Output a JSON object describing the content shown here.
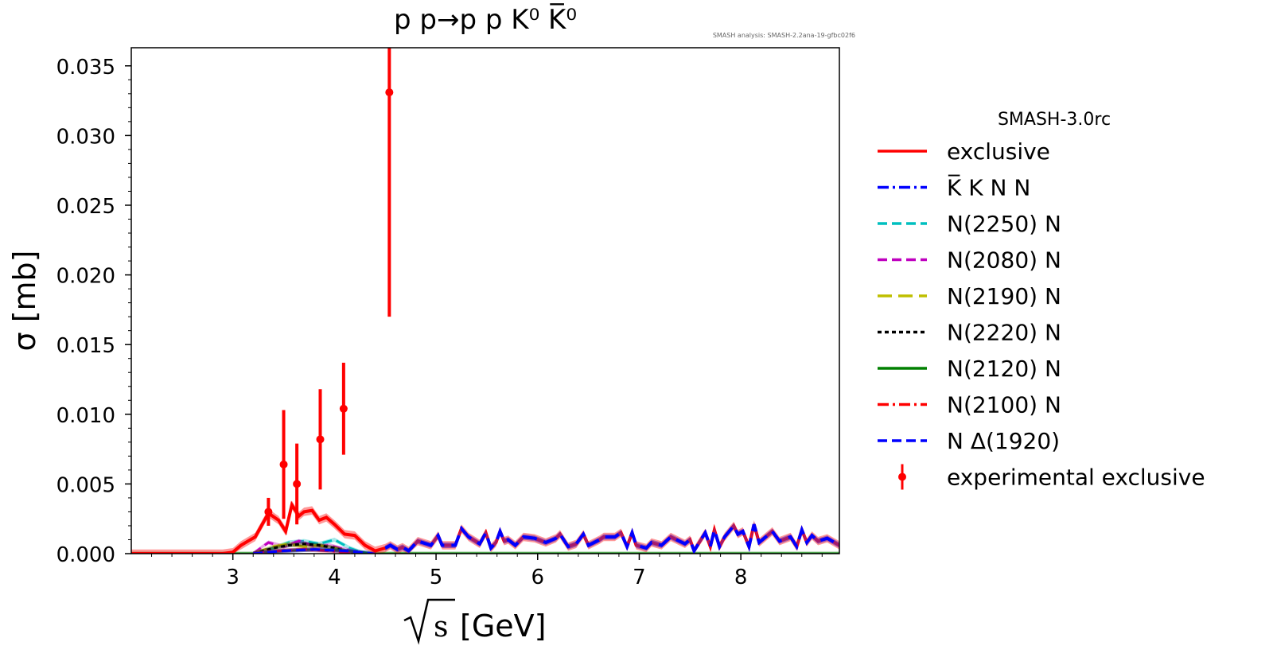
{
  "chart_data": {
    "type": "line",
    "title": "p p→p p K⁰ K̅⁰",
    "watermark": "SMASH analysis: SMASH-2.2ana-19-gfbc02f6",
    "xlabel_root": "√s",
    "xlabel_unit": "[GeV]",
    "ylabel": "σ [mb]",
    "xlim": [
      2.0,
      8.97
    ],
    "ylim": [
      0,
      0.0363
    ],
    "x_ticks": [
      3,
      4,
      5,
      6,
      7,
      8
    ],
    "x_tick_labels": [
      "3",
      "4",
      "5",
      "6",
      "7",
      "8"
    ],
    "y_ticks": [
      0,
      0.005,
      0.01,
      0.015,
      0.02,
      0.025,
      0.03,
      0.035
    ],
    "y_tick_labels": [
      "0.000",
      "0.005",
      "0.010",
      "0.015",
      "0.020",
      "0.025",
      "0.030",
      "0.035"
    ],
    "grid": false,
    "legend": {
      "title": "SMASH-3.0rc",
      "placement": "outside-right",
      "entries": [
        {
          "label": "exclusive",
          "color": "#ff0000",
          "style": "solid"
        },
        {
          "label": "K̅ K N N",
          "color": "#0000ff",
          "style": "dashdot"
        },
        {
          "label": "N(2250) N",
          "color": "#00bfbf",
          "style": "dashed"
        },
        {
          "label": "N(2080) N",
          "color": "#bf00bf",
          "style": "dashed"
        },
        {
          "label": "N(2190) N",
          "color": "#bfbf00",
          "style": "longdash"
        },
        {
          "label": "N(2220) N",
          "color": "#000000",
          "style": "dotted"
        },
        {
          "label": "N(2120) N",
          "color": "#008000",
          "style": "solid"
        },
        {
          "label": "N(2100) N",
          "color": "#ff0000",
          "style": "dashdot"
        },
        {
          "label": "N Δ(1920)",
          "color": "#0000ff",
          "style": "dashed"
        },
        {
          "label": "experimental exclusive",
          "color": "#ff0000",
          "style": "errorbar"
        }
      ]
    },
    "series": [
      {
        "name": "exclusive",
        "color": "#ff0000",
        "x": [
          2.0,
          2.9,
          3.0,
          3.08,
          3.15,
          3.22,
          3.35,
          3.45,
          3.52,
          3.58,
          3.65,
          3.7,
          3.78,
          3.85,
          3.92,
          4.0,
          4.1,
          4.2,
          4.3,
          4.4,
          4.5,
          4.55,
          4.62,
          4.67,
          4.73,
          4.82,
          4.95,
          5.02,
          5.06,
          5.19,
          5.25,
          5.32,
          5.43,
          5.49,
          5.54,
          5.59,
          5.63,
          5.67,
          5.71,
          5.78,
          5.86,
          5.97,
          6.08,
          6.18,
          6.22,
          6.3,
          6.38,
          6.45,
          6.5,
          6.61,
          6.65,
          6.76,
          6.82,
          6.88,
          6.93,
          6.97,
          7.07,
          7.12,
          7.22,
          7.31,
          7.45,
          7.5,
          7.54,
          7.65,
          7.7,
          7.74,
          7.79,
          7.84,
          7.93,
          7.97,
          8.02,
          8.08,
          8.13,
          8.18,
          8.31,
          8.38,
          8.49,
          8.55,
          8.6,
          8.65,
          8.7,
          8.76,
          8.85,
          8.97
        ],
        "y": [
          0,
          0,
          0.0001,
          0.0006,
          0.0009,
          0.0012,
          0.0029,
          0.0024,
          0.0016,
          0.0035,
          0.0027,
          0.003,
          0.0031,
          0.0024,
          0.0026,
          0.0021,
          0.0014,
          0.0013,
          0.0006,
          0.0002,
          0.0004,
          0.0006,
          0.0003,
          0.00046,
          0.0002,
          0.0009,
          0.0006,
          0.0013,
          0.0006,
          0.0006,
          0.0018,
          0.0012,
          0.0007,
          0.0015,
          0.0004,
          0.0008,
          0.0016,
          0.0009,
          0.001,
          0.0006,
          0.0012,
          0.0011,
          0.0008,
          0.0011,
          0.0014,
          0.0005,
          0.0007,
          0.0014,
          0.0006,
          0.001,
          0.0012,
          0.0012,
          0.0015,
          0.0005,
          0.0015,
          0.0006,
          0.0004,
          0.0008,
          0.0006,
          0.0012,
          0.0007,
          0.001,
          0.0002,
          0.0015,
          0.0005,
          0.0017,
          0.0005,
          0.0012,
          0.002,
          0.0014,
          0.0016,
          0.0005,
          0.0021,
          0.0008,
          0.0016,
          0.0009,
          0.0012,
          0.0005,
          0.0017,
          0.0008,
          0.0013,
          0.0009,
          0.0011,
          0.0006
        ],
        "band": 0.0003
      },
      {
        "name": "K̅ K N N",
        "color": "#0000ff",
        "from_exclusive_above": 4.45,
        "band": 0.0002
      },
      {
        "name": "N(2250) N",
        "color": "#00bfbf",
        "x": [
          3.2,
          3.4,
          3.55,
          3.7,
          3.85,
          4.0,
          4.15,
          4.3
        ],
        "y": [
          0,
          0.0004,
          0.0008,
          0.0009,
          0.0007,
          0.001,
          0.0004,
          0
        ]
      },
      {
        "name": "N(2080) N",
        "color": "#bf00bf",
        "x": [
          3.2,
          3.35,
          3.5,
          3.65,
          3.8,
          3.95,
          4.1,
          4.3
        ],
        "y": [
          0,
          0.0008,
          0.0005,
          0.0009,
          0.0005,
          0.0006,
          0.0003,
          0
        ]
      },
      {
        "name": "N(2190) N",
        "color": "#bfbf00",
        "x": [
          3.2,
          3.4,
          3.55,
          3.7,
          3.85,
          4.0,
          4.2
        ],
        "y": [
          0,
          0.0005,
          0.0007,
          0.0005,
          0.0006,
          0.0004,
          0
        ]
      },
      {
        "name": "N(2220) N",
        "color": "#000000",
        "x": [
          3.2,
          3.4,
          3.55,
          3.7,
          3.85,
          4.0,
          4.2
        ],
        "y": [
          0,
          0.0004,
          0.0006,
          0.0007,
          0.0006,
          0.0004,
          0
        ]
      },
      {
        "name": "N(2120) N",
        "color": "#008000",
        "x": [
          2.0,
          3.2,
          3.5,
          3.8,
          4.1,
          4.4,
          8.97
        ],
        "y": [
          0,
          0,
          0.0002,
          0.0003,
          0.0002,
          0,
          0
        ]
      },
      {
        "name": "N(2100) N",
        "color": "#ff0000",
        "x": [
          3.2,
          3.45,
          3.7,
          3.95,
          4.2
        ],
        "y": [
          0,
          0.0002,
          0.0003,
          0.0002,
          0
        ]
      },
      {
        "name": "N Δ(1920)",
        "color": "#0000ff",
        "x": [
          3.2,
          3.5,
          3.8,
          4.1,
          4.4
        ],
        "y": [
          0,
          0.0002,
          0.0003,
          0.0002,
          0
        ]
      }
    ],
    "experimental": {
      "name": "experimental exclusive",
      "color": "#ff0000",
      "x": [
        3.35,
        3.5,
        3.63,
        3.86,
        4.09,
        4.54
      ],
      "y": [
        0.003,
        0.0064,
        0.005,
        0.0082,
        0.0104,
        0.0331
      ],
      "y_low": [
        0.002,
        0.0025,
        0.0021,
        0.0046,
        0.0071,
        0.017
      ],
      "y_high": [
        0.004,
        0.0103,
        0.0079,
        0.0118,
        0.0137,
        0.0363
      ]
    }
  }
}
